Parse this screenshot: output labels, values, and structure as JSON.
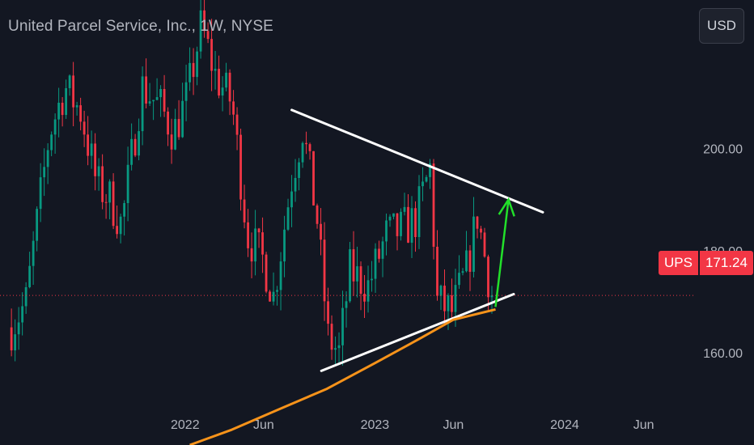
{
  "header": {
    "title": "United Parcel Service, Inc., 1W, NYSE",
    "currency_button": "USD"
  },
  "price_tag": {
    "symbol": "UPS",
    "value": "171.24"
  },
  "colors": {
    "background": "#131722",
    "up_candle": "#089981",
    "down_candle": "#f23645",
    "trendline": "#ffffff",
    "moving_average": "#f7931a",
    "projection_arrow": "#22e02a",
    "axis_text": "#b2b5be"
  },
  "chart_data": {
    "type": "candlestick",
    "xlabel": "",
    "ylabel": "",
    "y_ticks": [
      160,
      180,
      200
    ],
    "ylim": [
      142,
      229
    ],
    "x_ticks": [
      {
        "label": "2022",
        "date": "2022-01-01"
      },
      {
        "label": "Jun",
        "date": "2022-06-01"
      },
      {
        "label": "2023",
        "date": "2023-01-01"
      },
      {
        "label": "Jun",
        "date": "2023-06-01"
      },
      {
        "label": "2024",
        "date": "2024-01-01"
      },
      {
        "label": "Jun",
        "date": "2024-06-01"
      }
    ],
    "xlim": [
      "2021-01-10",
      "2024-09-06"
    ],
    "last_price": 171.24,
    "ohlc_points": [
      {
        "date": "2021-02-01",
        "close": 165
      },
      {
        "date": "2021-03-01",
        "close": 170
      },
      {
        "date": "2021-04-15",
        "close": 203
      },
      {
        "date": "2021-05-15",
        "close": 212
      },
      {
        "date": "2021-06-15",
        "close": 207
      },
      {
        "date": "2021-07-15",
        "close": 193
      },
      {
        "date": "2021-08-10",
        "close": 190
      },
      {
        "date": "2021-09-01",
        "close": 185
      },
      {
        "date": "2021-10-10",
        "close": 212
      },
      {
        "date": "2021-11-15",
        "close": 208
      },
      {
        "date": "2021-12-10",
        "close": 203
      },
      {
        "date": "2022-01-05",
        "close": 210
      },
      {
        "date": "2022-02-01",
        "close": 224
      },
      {
        "date": "2022-03-01",
        "close": 214
      },
      {
        "date": "2022-04-01",
        "close": 209
      },
      {
        "date": "2022-05-01",
        "close": 183
      },
      {
        "date": "2022-06-01",
        "close": 178
      },
      {
        "date": "2022-06-20",
        "close": 171
      },
      {
        "date": "2022-07-25",
        "close": 194
      },
      {
        "date": "2022-08-15",
        "close": 204
      },
      {
        "date": "2022-09-12",
        "close": 186
      },
      {
        "date": "2022-10-03",
        "close": 163
      },
      {
        "date": "2022-10-24",
        "close": 160
      },
      {
        "date": "2022-11-14",
        "close": 176
      },
      {
        "date": "2022-12-19",
        "close": 173
      },
      {
        "date": "2023-01-23",
        "close": 183
      },
      {
        "date": "2023-02-20",
        "close": 184
      },
      {
        "date": "2023-03-20",
        "close": 186
      },
      {
        "date": "2023-04-17",
        "close": 196
      },
      {
        "date": "2023-05-01",
        "close": 170
      },
      {
        "date": "2023-05-29",
        "close": 168
      },
      {
        "date": "2023-06-26",
        "close": 176
      },
      {
        "date": "2023-07-17",
        "close": 187
      },
      {
        "date": "2023-08-14",
        "close": 171
      }
    ],
    "lines": [
      {
        "name": "",
        "kind": "trendline",
        "points": [
          [
            "2022-07-25",
            207.5
          ],
          [
            "2023-11-20",
            187.5
          ]
        ]
      },
      {
        "name": "",
        "kind": "trendline",
        "points": [
          [
            "2022-09-20",
            156.5
          ],
          [
            "2023-09-25",
            171.5
          ]
        ]
      },
      {
        "name": "",
        "kind": "moving-average",
        "points": [
          [
            "2022-01-10",
            142
          ],
          [
            "2022-04-01",
            145
          ],
          [
            "2022-07-01",
            149
          ],
          [
            "2022-10-01",
            153
          ],
          [
            "2023-01-01",
            158
          ],
          [
            "2023-04-01",
            163
          ],
          [
            "2023-06-01",
            166.5
          ],
          [
            "2023-08-21",
            168.5
          ]
        ]
      },
      {
        "name": "",
        "kind": "projection-arrow",
        "points": [
          [
            "2023-08-21",
            169
          ],
          [
            "2023-09-15",
            190
          ]
        ]
      }
    ]
  }
}
